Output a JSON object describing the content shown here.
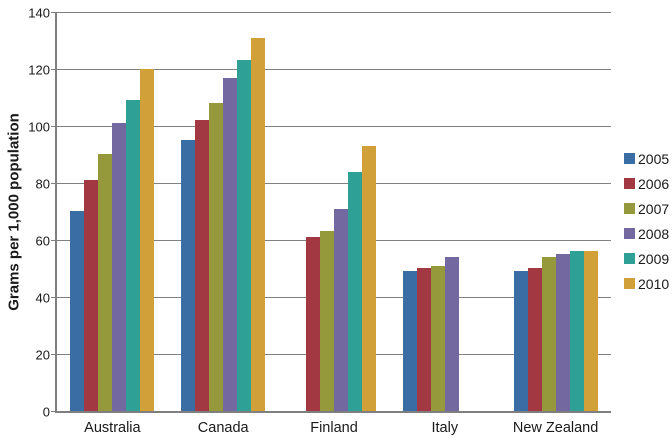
{
  "chart_data": {
    "type": "bar",
    "title": "",
    "xlabel": "",
    "ylabel": "Grams per 1,000 population",
    "ylim": [
      0,
      140
    ],
    "yticks": [
      0,
      20,
      40,
      60,
      80,
      100,
      120,
      140
    ],
    "grid": "horizontal",
    "legend_position": "right",
    "categories": [
      "Australia",
      "Canada",
      "Finland",
      "Italy",
      "New Zealand"
    ],
    "series": [
      {
        "name": "2005",
        "color": "#3B6DA5",
        "values": [
          70,
          95,
          null,
          49,
          49
        ]
      },
      {
        "name": "2006",
        "color": "#A23842",
        "values": [
          81,
          102,
          61,
          50,
          50
        ]
      },
      {
        "name": "2007",
        "color": "#95993C",
        "values": [
          90,
          108,
          63,
          51,
          54
        ]
      },
      {
        "name": "2008",
        "color": "#73689F",
        "values": [
          101,
          117,
          71,
          54,
          55
        ]
      },
      {
        "name": "2009",
        "color": "#2FA096",
        "values": [
          109,
          123,
          84,
          null,
          56
        ]
      },
      {
        "name": "2010",
        "color": "#D2A038",
        "values": [
          120,
          131,
          93,
          null,
          56
        ]
      }
    ],
    "colors": {
      "gridline": "#808080",
      "axis": "#7F7F7F",
      "text": "#1A1A1A",
      "background": "#FFFFFF"
    }
  }
}
